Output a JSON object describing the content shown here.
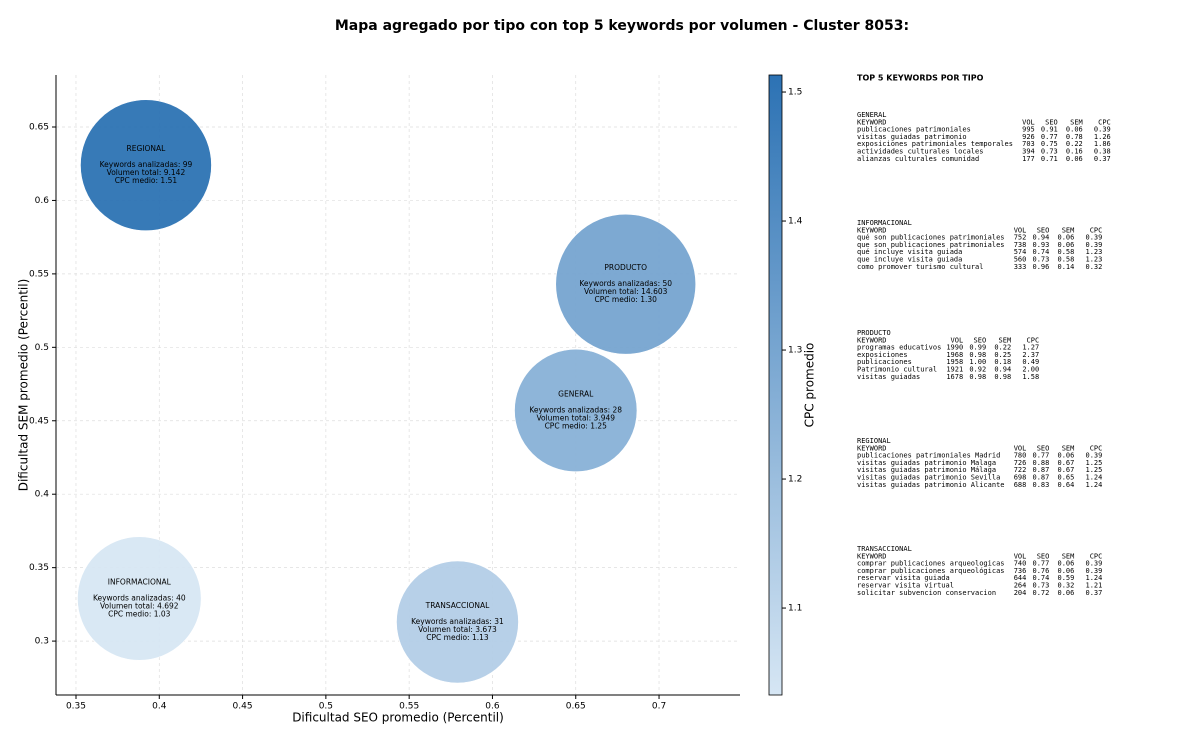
{
  "chart_data": {
    "type": "bubble",
    "title": "Mapa agregado por tipo con top 5 keywords por volumen - Cluster 8053:",
    "xlabel": "Dificultad SEO promedio (Percentil)",
    "ylabel": "Dificultad SEM promedio (Percentil)",
    "xlim": [
      0.338,
      0.7486
    ],
    "ylim": [
      0.2633,
      0.6854
    ],
    "xticks": [
      0.35,
      0.4,
      0.45,
      0.5,
      0.55,
      0.6,
      0.65,
      0.7
    ],
    "yticks": [
      0.3,
      0.35,
      0.4,
      0.45,
      0.5,
      0.55,
      0.6,
      0.65
    ],
    "grid": true,
    "colorbar": {
      "label": "CPC promedio",
      "lim": [
        1.0326,
        1.5132
      ],
      "ticks": [
        1.1,
        1.2,
        1.3,
        1.4,
        1.5
      ],
      "colors": [
        "#d6e6f4",
        "#2c72b4"
      ]
    },
    "points": [
      {
        "name": "REGIONAL",
        "x": 0.392,
        "y": 0.624,
        "volume": 9142,
        "cpc": 1.51,
        "lines": [
          "Keywords analizadas: 99",
          "Volumen total: 9.142",
          "CPC medio: 1.51"
        ]
      },
      {
        "name": "PRODUCTO",
        "x": 0.68,
        "y": 0.543,
        "volume": 14603,
        "cpc": 1.3,
        "lines": [
          "Keywords analizadas: 50",
          "Volumen total: 14.603",
          "CPC medio: 1.30"
        ]
      },
      {
        "name": "GENERAL",
        "x": 0.65,
        "y": 0.457,
        "volume": 3949,
        "cpc": 1.25,
        "lines": [
          "Keywords analizadas: 28",
          "Volumen total: 3.949",
          "CPC medio: 1.25"
        ]
      },
      {
        "name": "INFORMACIONAL",
        "x": 0.388,
        "y": 0.329,
        "volume": 4692,
        "cpc": 1.03,
        "lines": [
          "Keywords analizadas: 40",
          "Volumen total: 4.692",
          "CPC medio: 1.03"
        ]
      },
      {
        "name": "TRANSACCIONAL",
        "x": 0.579,
        "y": 0.313,
        "volume": 3673,
        "cpc": 1.13,
        "lines": [
          "Keywords analizadas: 31",
          "Volumen total: 3.673",
          "CPC medio: 1.13"
        ]
      }
    ],
    "panel": {
      "title": "TOP 5 KEYWORDS POR TIPO",
      "header": [
        "KEYWORD",
        "VOL",
        "SEO",
        "SEM",
        "CPC"
      ],
      "sections": [
        {
          "name": "GENERAL",
          "rows": [
            [
              "publicaciones patrimoniales",
              "995",
              "0.91",
              "0.06",
              "0.39"
            ],
            [
              "visitas guiadas patrimonio",
              "926",
              "0.77",
              "0.78",
              "1.26"
            ],
            [
              "exposiciones patrimoniales temporales",
              "703",
              "0.75",
              "0.22",
              "1.86"
            ],
            [
              "actividades culturales locales",
              "394",
              "0.73",
              "0.16",
              "0.38"
            ],
            [
              "alianzas culturales comunidad",
              "177",
              "0.71",
              "0.06",
              "0.37"
            ]
          ]
        },
        {
          "name": "INFORMACIONAL",
          "rows": [
            [
              "qué son publicaciones patrimoniales",
              "752",
              "0.94",
              "0.06",
              "0.39"
            ],
            [
              "que son publicaciones patrimoniales",
              "738",
              "0.93",
              "0.06",
              "0.39"
            ],
            [
              "qué incluye visita guiada",
              "574",
              "0.74",
              "0.58",
              "1.23"
            ],
            [
              "que incluye visita guiada",
              "560",
              "0.73",
              "0.58",
              "1.23"
            ],
            [
              "como promover turismo cultural",
              "333",
              "0.96",
              "0.14",
              "0.32"
            ]
          ]
        },
        {
          "name": "PRODUCTO",
          "rows": [
            [
              "programas educativos",
              "1990",
              "0.99",
              "0.22",
              "1.27"
            ],
            [
              "exposiciones",
              "1968",
              "0.98",
              "0.25",
              "2.37"
            ],
            [
              "publicaciones",
              "1958",
              "1.00",
              "0.18",
              "0.49"
            ],
            [
              "Patrimonio cultural",
              "1921",
              "0.92",
              "0.94",
              "2.00"
            ],
            [
              "visitas guiadas",
              "1678",
              "0.98",
              "0.98",
              "1.58"
            ]
          ]
        },
        {
          "name": "REGIONAL",
          "rows": [
            [
              "publicaciones patrimoniales Madrid",
              "780",
              "0.77",
              "0.06",
              "0.39"
            ],
            [
              "visitas guiadas patrimonio Malaga",
              "726",
              "0.88",
              "0.67",
              "1.25"
            ],
            [
              "visitas guiadas patrimonio Málaga",
              "722",
              "0.87",
              "0.67",
              "1.25"
            ],
            [
              "visitas guiadas patrimonio Sevilla",
              "698",
              "0.87",
              "0.65",
              "1.24"
            ],
            [
              "visitas guiadas patrimonio Alicante",
              "688",
              "0.83",
              "0.64",
              "1.24"
            ]
          ]
        },
        {
          "name": "TRANSACCIONAL",
          "rows": [
            [
              "comprar publicaciones arqueologicas",
              "740",
              "0.77",
              "0.06",
              "0.39"
            ],
            [
              "comprar publicaciones arqueológicas",
              "736",
              "0.76",
              "0.06",
              "0.39"
            ],
            [
              "reservar visita guiada",
              "644",
              "0.74",
              "0.59",
              "1.24"
            ],
            [
              "reservar visita virtual",
              "264",
              "0.73",
              "0.32",
              "1.21"
            ],
            [
              "solicitar subvencion conservacion",
              "204",
              "0.72",
              "0.06",
              "0.37"
            ]
          ]
        }
      ]
    }
  }
}
